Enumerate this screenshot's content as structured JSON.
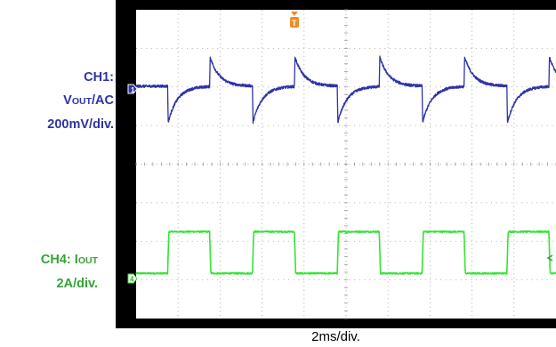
{
  "ch1": {
    "name": "CH1:",
    "measure_main": "V",
    "measure_sub": "OUT",
    "measure_tail": "/AC",
    "scale": "200mV/div.",
    "color": "#2f33a6",
    "marker": "1"
  },
  "ch4": {
    "name_prefix": "CH4: I",
    "name_sub": "OUT",
    "scale": "2A/div.",
    "color": "#35e335",
    "marker": "4"
  },
  "trigger": {
    "marker": "T",
    "color": "#f08a24"
  },
  "timebase": "2ms/div.",
  "chart_data": {
    "type": "line",
    "title": "",
    "xlabel": "2ms/div.",
    "ylabel": "",
    "x_divisions": 10,
    "y_divisions": 8,
    "grid": true,
    "ms_per_div": 2,
    "series": [
      {
        "name": "CH1: VOUT/AC",
        "units_per_div": "200mV",
        "period_div": 2.02,
        "baseline_div": 6.02,
        "undershoot_div": 1.0,
        "overshoot_div": 0.8,
        "load_step_up_times_div": [
          0.75,
          2.77,
          4.79,
          6.81,
          8.83
        ],
        "load_step_down_times_div": [
          1.75,
          3.77,
          5.79,
          7.81,
          9.83
        ]
      },
      {
        "name": "CH4: IOUT",
        "units_per_div": "2A",
        "low_level_div": 1.17,
        "high_level_div": 2.25,
        "period_div": 2.02,
        "high_intervals_div": [
          [
            0.75,
            1.75
          ],
          [
            2.77,
            3.77
          ],
          [
            4.79,
            5.79
          ],
          [
            6.81,
            7.81
          ],
          [
            8.83,
            9.83
          ]
        ]
      }
    ]
  }
}
